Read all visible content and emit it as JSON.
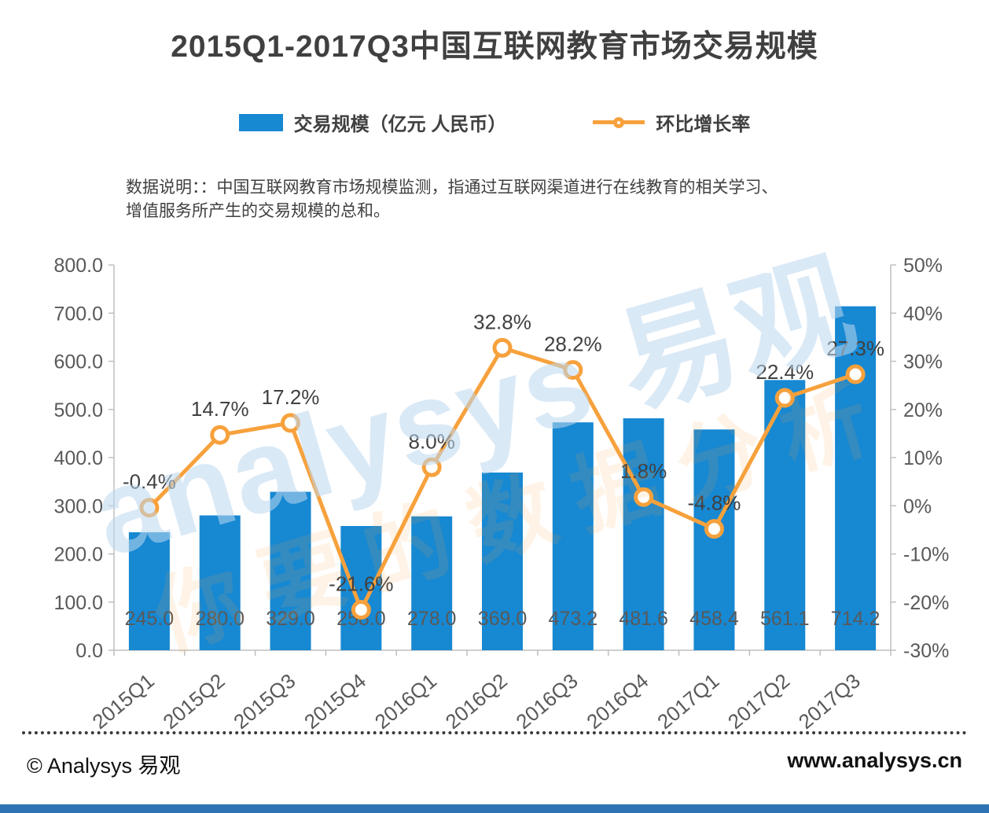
{
  "page": {
    "title": "2015Q1-2017Q3中国互联网教育市场交易规模",
    "note": {
      "line1": "数据说明：：中国互联网教育市场规模监测，指通过互联网渠道进行在线教育的相关学习、",
      "line2": "增值服务所产生的交易规模的总和。"
    },
    "watermark": {
      "primary": "analysys 易观",
      "secondary": "你要的数据分析"
    },
    "footer": {
      "copyright": "© Analysys 易观",
      "website": "www.analysys.cn"
    }
  },
  "legend": {
    "bar_label": "交易规模（亿元 人民币）",
    "line_label": "环比增长率",
    "bar_color": "#1788D2",
    "line_color": "#F7A13C"
  },
  "chart_data": {
    "type": "bar",
    "combo": "bar+line",
    "title": "2015Q1-2017Q3中国互联网教育市场交易规模",
    "categories": [
      "2015Q1",
      "2015Q2",
      "2015Q3",
      "2015Q4",
      "2016Q1",
      "2016Q2",
      "2016Q3",
      "2016Q4",
      "2017Q1",
      "2017Q2",
      "2017Q3"
    ],
    "series": [
      {
        "name": "交易规模（亿元 人民币）",
        "type": "bar",
        "axis": "left",
        "color": "#1788D2",
        "values": [
          245.0,
          280.0,
          329.0,
          258.0,
          278.0,
          369.0,
          473.2,
          481.6,
          458.4,
          561.1,
          714.2
        ],
        "data_labels": [
          "245.0",
          "280.0",
          "329.0",
          "258.0",
          "278.0",
          "369.0",
          "473.2",
          "481.6",
          "458.4",
          "561.1",
          "714.2"
        ]
      },
      {
        "name": "环比增长率",
        "type": "line",
        "axis": "right",
        "color": "#F7A13C",
        "values": [
          -0.4,
          14.7,
          17.2,
          -21.6,
          8.0,
          32.8,
          28.2,
          1.8,
          -4.8,
          22.4,
          27.3
        ],
        "data_labels": [
          "-0.4%",
          "14.7%",
          "17.2%",
          "-21.6%",
          "8.0%",
          "32.8%",
          "28.2%",
          "1.8%",
          "-4.8%",
          "22.4%",
          "27.3%"
        ]
      }
    ],
    "left_axis": {
      "min": 0,
      "max": 800,
      "step": 100,
      "tick_labels": [
        "0.0",
        "100.0",
        "200.0",
        "300.0",
        "400.0",
        "500.0",
        "600.0",
        "700.0",
        "800.0"
      ]
    },
    "right_axis": {
      "min": -30,
      "max": 50,
      "step": 10,
      "tick_labels": [
        "-30%",
        "-20%",
        "-10%",
        "0%",
        "10%",
        "20%",
        "30%",
        "40%",
        "50%"
      ]
    },
    "grid": false,
    "legend_position": "top"
  }
}
